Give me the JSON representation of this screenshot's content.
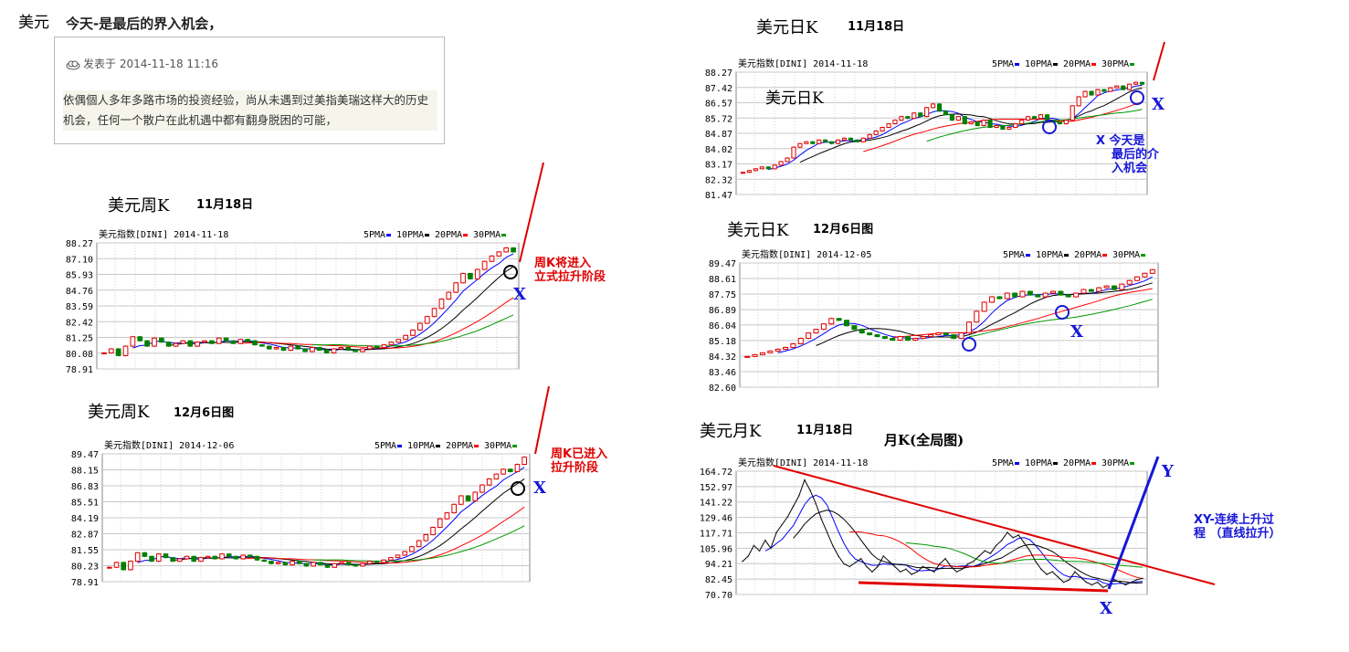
{
  "post": {
    "category": "美元",
    "title": "今天-是最后的界入机会，",
    "meta_prefix": "发表于",
    "meta_time": "2014-11-18 11:16",
    "body": "依偶個人多年多路市场的投资经验，尚从未遇到过美指美瑞这样大的历史机会，任何一个散户在此机遇中都有翻身脱困的可能，"
  },
  "headings": {
    "weekly_1118": {
      "title": "美元周K",
      "date": "11月18日"
    },
    "weekly_1206": {
      "title": "美元周K",
      "date": "12月6日图"
    },
    "daily_1118": {
      "title": "美元日K",
      "date": "11月18日"
    },
    "daily_1206": {
      "title": "美元日K",
      "date": "12月6日图"
    },
    "monthly_1118": {
      "title": "美元月K",
      "date": "11月18日",
      "subtitle": "月K(全局图)"
    }
  },
  "annotations": {
    "weekly_1118": {
      "text_line1": "周K将进入",
      "text_line2": "立式拉升阶段",
      "marker": "X"
    },
    "weekly_1206": {
      "text_line1": "周K已进入",
      "text_line2": "拉升阶段",
      "marker": "X"
    },
    "daily_1118": {
      "inner_label": "美元日K",
      "marker": "X",
      "text_line1": "X 今天是",
      "text_line2": "最后的介",
      "text_line3": "入机会"
    },
    "daily_1206": {
      "marker": "X"
    },
    "monthly_1118": {
      "marker_x": "X",
      "marker_y": "Y",
      "text_line1": "XY-连续上升过",
      "text_line2": "程  （直线拉升）"
    }
  },
  "colors": {
    "up": "#e00000",
    "down": "#008000",
    "ma5": "#0000ff",
    "ma10": "#000000",
    "ma20": "#ff0000",
    "ma30": "#009900",
    "annotation_red": "#e00000",
    "annotation_blue": "#1616d8",
    "grid": "#c8c8c8"
  },
  "chart_data": [
    {
      "id": "weekly_1118",
      "type": "candlestick",
      "title": "美元指数[DINI] 2014-11-18",
      "legend": [
        "5PMA",
        "10PMA",
        "20PMA",
        "30PMA"
      ],
      "yticks": [
        "88.27",
        "87.10",
        "85.93",
        "84.76",
        "83.59",
        "82.42",
        "81.25",
        "80.08",
        "78.91"
      ],
      "ylim": [
        78.91,
        88.27
      ],
      "closes": [
        80.1,
        80.4,
        79.9,
        80.6,
        81.3,
        81.0,
        80.6,
        81.2,
        80.9,
        80.6,
        80.8,
        81.0,
        80.6,
        80.9,
        81.0,
        80.8,
        81.2,
        81.0,
        80.8,
        81.1,
        81.0,
        80.7,
        80.6,
        80.4,
        80.5,
        80.3,
        80.6,
        80.4,
        80.2,
        80.5,
        80.3,
        80.1,
        80.4,
        80.5,
        80.3,
        80.2,
        80.4,
        80.6,
        80.5,
        80.7,
        80.9,
        81.1,
        81.4,
        81.8,
        82.3,
        82.8,
        83.4,
        84.1,
        84.6,
        85.3,
        86.0,
        85.6,
        86.3,
        86.9,
        87.3,
        87.6,
        87.9,
        87.6
      ]
    },
    {
      "id": "weekly_1206",
      "type": "candlestick",
      "title": "美元指数[DINI] 2014-12-06",
      "legend": [
        "5PMA",
        "10PMA",
        "20PMA",
        "30PMA"
      ],
      "yticks": [
        "89.47",
        "88.15",
        "86.83",
        "85.51",
        "84.19",
        "82.87",
        "81.55",
        "80.23",
        "78.91"
      ],
      "ylim": [
        78.91,
        89.47
      ],
      "closes": [
        80.1,
        80.5,
        79.9,
        80.6,
        81.3,
        81.0,
        80.6,
        81.2,
        80.9,
        80.6,
        80.8,
        81.0,
        80.6,
        80.9,
        81.0,
        80.8,
        81.2,
        81.0,
        80.8,
        81.1,
        81.0,
        80.7,
        80.6,
        80.4,
        80.5,
        80.3,
        80.6,
        80.4,
        80.2,
        80.5,
        80.3,
        80.1,
        80.4,
        80.5,
        80.3,
        80.2,
        80.4,
        80.6,
        80.5,
        80.7,
        80.9,
        81.1,
        81.4,
        81.8,
        82.3,
        82.8,
        83.4,
        84.1,
        84.6,
        85.3,
        86.0,
        85.6,
        86.3,
        86.9,
        87.4,
        87.8,
        88.2,
        88.0,
        88.6,
        89.2
      ]
    },
    {
      "id": "daily_1118",
      "type": "candlestick",
      "title": "美元指数[DINI] 2014-11-18",
      "legend": [
        "5PMA",
        "10PMA",
        "20PMA",
        "30PMA"
      ],
      "yticks": [
        "88.27",
        "87.42",
        "86.57",
        "85.72",
        "84.87",
        "84.02",
        "83.17",
        "82.32",
        "81.47"
      ],
      "ylim": [
        81.47,
        88.27
      ],
      "closes": [
        82.7,
        82.8,
        82.9,
        83.0,
        82.9,
        83.1,
        83.3,
        83.5,
        84.1,
        84.3,
        84.4,
        84.3,
        84.5,
        84.4,
        84.3,
        84.5,
        84.6,
        84.5,
        84.4,
        84.6,
        84.8,
        85.0,
        85.2,
        85.4,
        85.6,
        85.8,
        85.7,
        86.0,
        85.8,
        86.3,
        86.5,
        86.1,
        85.9,
        85.6,
        85.8,
        85.4,
        85.5,
        85.3,
        85.6,
        85.2,
        85.3,
        85.1,
        85.2,
        85.4,
        85.6,
        85.8,
        85.7,
        85.9,
        85.6,
        85.5,
        85.4,
        85.6,
        86.4,
        86.9,
        87.2,
        87.0,
        87.3,
        87.2,
        87.4,
        87.5,
        87.3,
        87.6,
        87.7,
        87.6
      ]
    },
    {
      "id": "daily_1206",
      "type": "candlestick",
      "title": "美元指数[DINI] 2014-12-05",
      "legend": [
        "5PMA",
        "10PMA",
        "20PMA",
        "30PMA"
      ],
      "yticks": [
        "89.47",
        "88.61",
        "87.75",
        "86.89",
        "86.04",
        "85.18",
        "84.32",
        "83.46",
        "82.60"
      ],
      "ylim": [
        82.6,
        89.47
      ],
      "closes": [
        84.3,
        84.4,
        84.5,
        84.6,
        84.7,
        84.8,
        85.0,
        85.3,
        85.6,
        85.8,
        86.1,
        86.4,
        86.3,
        86.0,
        85.8,
        85.6,
        85.5,
        85.4,
        85.3,
        85.2,
        85.4,
        85.2,
        85.3,
        85.4,
        85.5,
        85.6,
        85.5,
        85.3,
        85.6,
        86.2,
        86.8,
        87.3,
        87.6,
        87.5,
        87.8,
        87.6,
        87.9,
        87.7,
        87.6,
        87.8,
        87.9,
        87.7,
        87.6,
        87.8,
        88.0,
        87.9,
        88.1,
        88.2,
        88.0,
        88.3,
        88.5,
        88.7,
        88.9,
        89.1
      ]
    },
    {
      "id": "monthly_1118",
      "type": "line",
      "title": "美元指数[DINI] 2014-11-18",
      "legend": [
        "5PMA",
        "10PMA",
        "20PMA",
        "30PMA"
      ],
      "yticks": [
        "164.72",
        "152.97",
        "141.22",
        "129.46",
        "117.71",
        "105.96",
        "94.21",
        "82.45",
        "70.70"
      ],
      "ylim": [
        70.7,
        164.72
      ],
      "closes": [
        96,
        100,
        108,
        104,
        112,
        106,
        118,
        124,
        130,
        138,
        146,
        158,
        150,
        140,
        128,
        118,
        108,
        100,
        94,
        92,
        95,
        98,
        92,
        88,
        92,
        100,
        96,
        92,
        88,
        90,
        86,
        88,
        92,
        90,
        88,
        94,
        98,
        92,
        88,
        90,
        94,
        96,
        100,
        104,
        102,
        108,
        112,
        118,
        114,
        116,
        110,
        104,
        96,
        90,
        86,
        88,
        84,
        80,
        82,
        88,
        84,
        80,
        78,
        80,
        76,
        78,
        82,
        80,
        78,
        80,
        82,
        83
      ]
    }
  ]
}
